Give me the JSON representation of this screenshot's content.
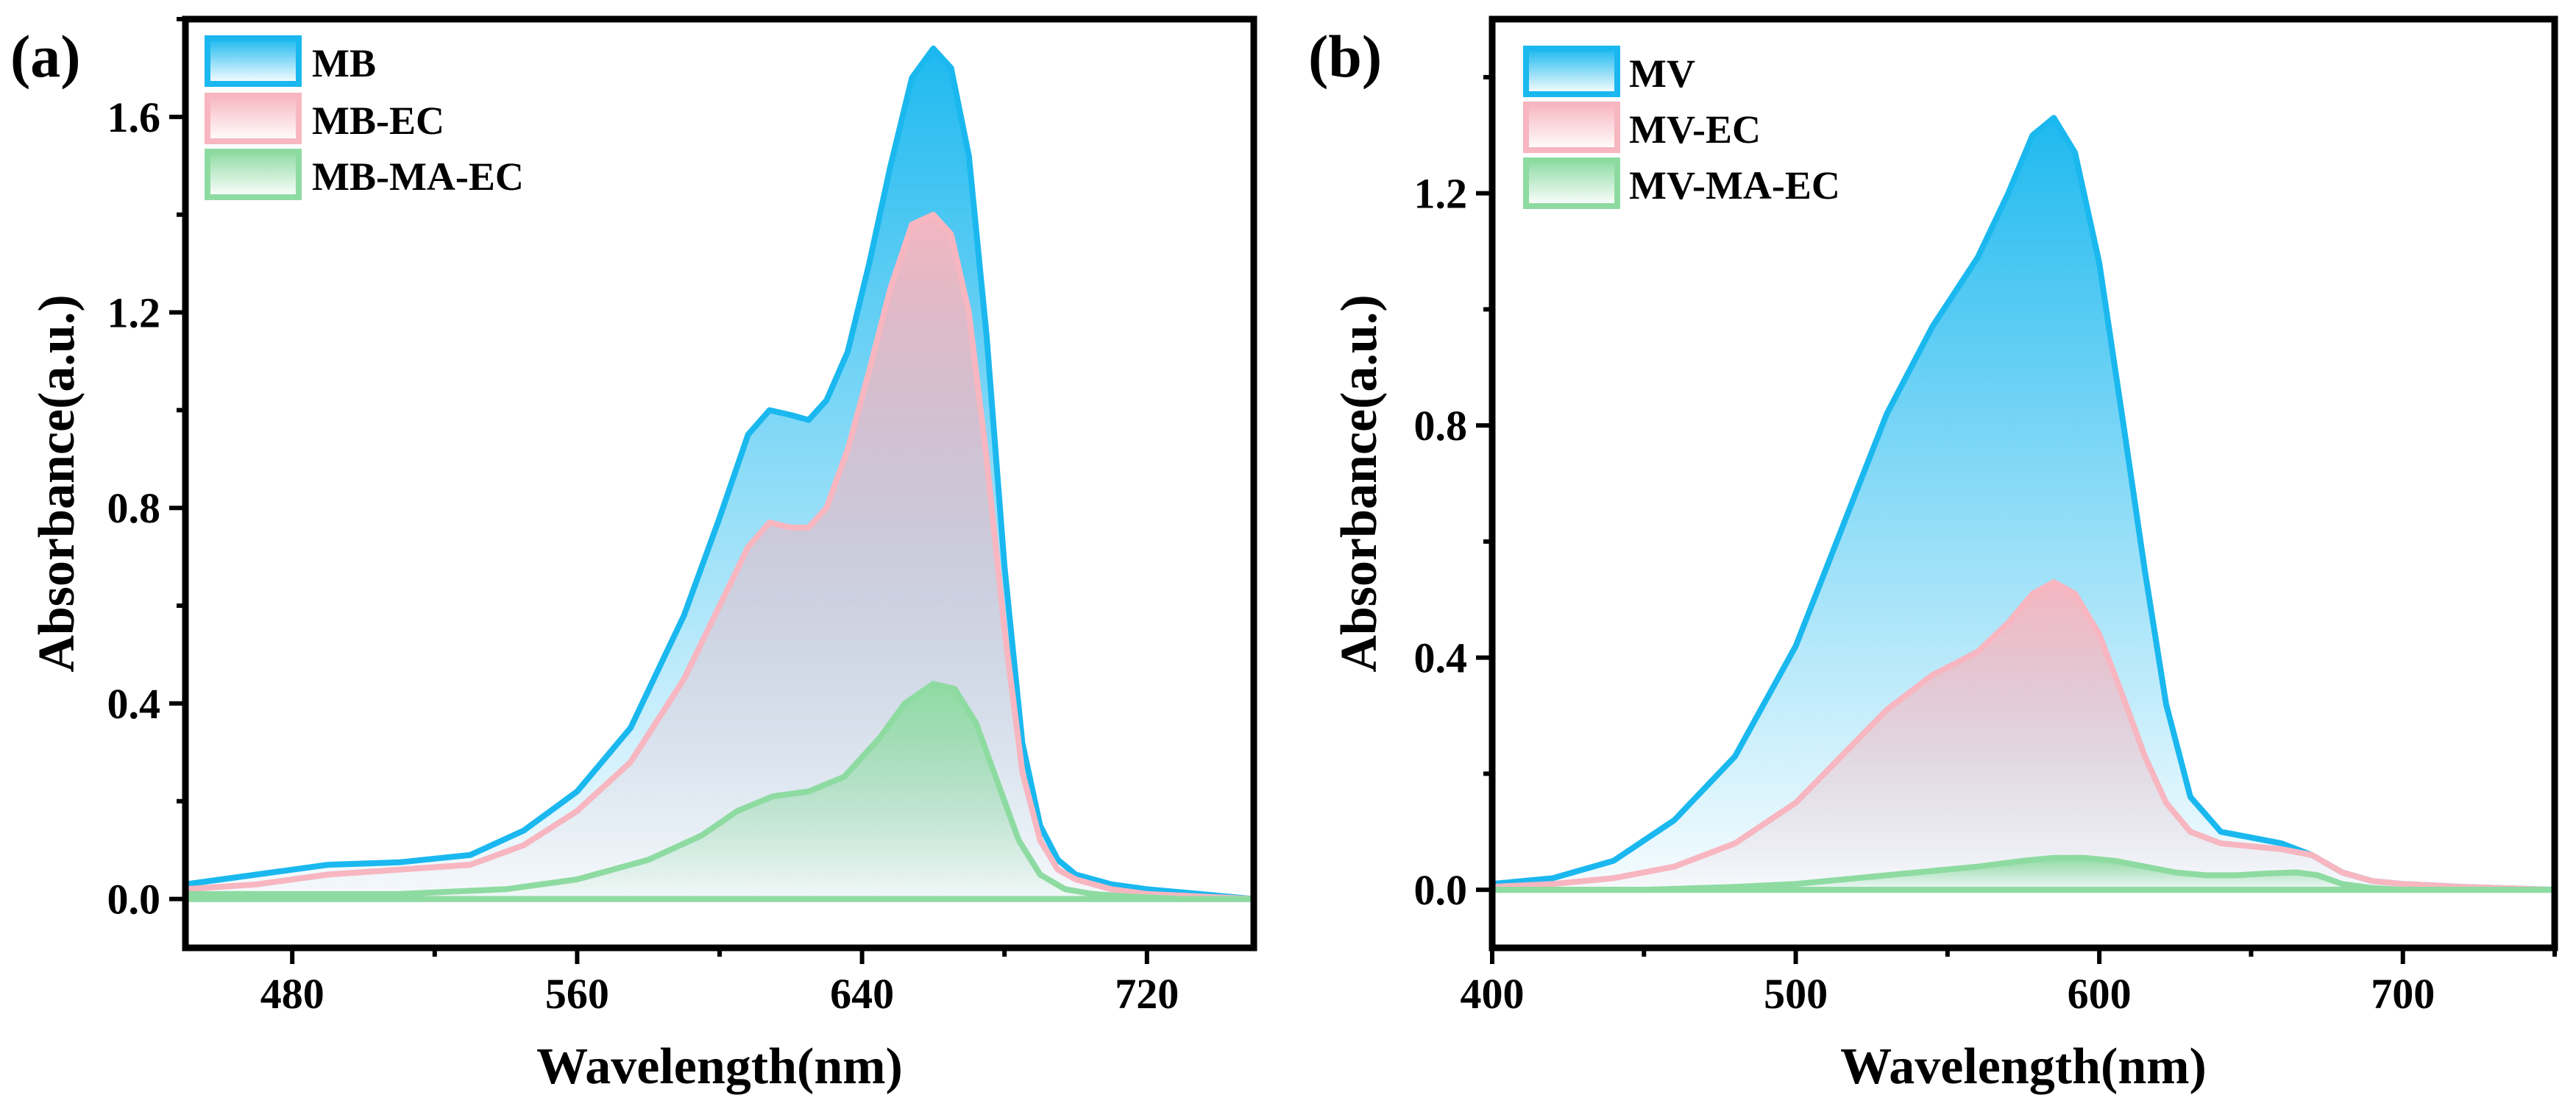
{
  "chart_data": [
    {
      "type": "area",
      "panel_label": "(a)",
      "xlabel": "Wavelength(nm)",
      "ylabel": "Absorbance(a.u.)",
      "xlim": [
        450,
        750
      ],
      "ylim": [
        -0.1,
        1.8
      ],
      "xticks": [
        480,
        560,
        640,
        720
      ],
      "yticks": [
        0.0,
        0.4,
        0.8,
        1.2,
        1.6
      ],
      "xtick_labels": [
        "480",
        "560",
        "640",
        "720"
      ],
      "ytick_labels": [
        "0.0",
        "0.4",
        "0.8",
        "1.2",
        "1.6"
      ],
      "legend_position": "top-left",
      "series": [
        {
          "name": "MB",
          "color": "#1ab8ef",
          "x": [
            450,
            470,
            490,
            510,
            530,
            545,
            560,
            575,
            590,
            600,
            608,
            614,
            620,
            625,
            630,
            636,
            642,
            648,
            654,
            660,
            665,
            670,
            675,
            680,
            685,
            690,
            695,
            700,
            710,
            720,
            735,
            750
          ],
          "y": [
            0.03,
            0.05,
            0.07,
            0.075,
            0.09,
            0.14,
            0.22,
            0.35,
            0.58,
            0.78,
            0.95,
            1.0,
            0.99,
            0.98,
            1.02,
            1.12,
            1.3,
            1.5,
            1.68,
            1.74,
            1.7,
            1.52,
            1.15,
            0.68,
            0.32,
            0.15,
            0.08,
            0.05,
            0.03,
            0.02,
            0.01,
            0.0
          ]
        },
        {
          "name": "MB-EC",
          "color": "#f7b6c0",
          "x": [
            450,
            470,
            490,
            510,
            530,
            545,
            560,
            575,
            590,
            600,
            608,
            614,
            620,
            625,
            630,
            636,
            642,
            648,
            654,
            660,
            665,
            670,
            675,
            680,
            685,
            690,
            695,
            700,
            710,
            720,
            735,
            750
          ],
          "y": [
            0.02,
            0.03,
            0.05,
            0.06,
            0.07,
            0.11,
            0.18,
            0.28,
            0.45,
            0.6,
            0.72,
            0.77,
            0.76,
            0.76,
            0.8,
            0.92,
            1.08,
            1.25,
            1.38,
            1.4,
            1.36,
            1.2,
            0.9,
            0.55,
            0.26,
            0.12,
            0.06,
            0.04,
            0.02,
            0.01,
            0.005,
            0.0
          ]
        },
        {
          "name": "MB-MA-EC",
          "color": "#8edba2",
          "x": [
            450,
            480,
            510,
            540,
            560,
            580,
            595,
            605,
            615,
            625,
            635,
            645,
            652,
            660,
            666,
            672,
            678,
            684,
            690,
            697,
            705,
            715,
            730,
            750
          ],
          "y": [
            0.01,
            0.01,
            0.01,
            0.02,
            0.04,
            0.08,
            0.13,
            0.18,
            0.21,
            0.22,
            0.25,
            0.33,
            0.4,
            0.44,
            0.43,
            0.36,
            0.24,
            0.12,
            0.05,
            0.02,
            0.01,
            0.005,
            0.0,
            0.0
          ]
        }
      ]
    },
    {
      "type": "area",
      "panel_label": "(b)",
      "xlabel": "Wavelength(nm)",
      "ylabel": "Absorbance(a.u.)",
      "xlim": [
        400,
        750
      ],
      "ylim": [
        -0.1,
        1.5
      ],
      "xticks": [
        400,
        500,
        600,
        700
      ],
      "yticks": [
        0.0,
        0.4,
        0.8,
        1.2
      ],
      "xtick_labels": [
        "400",
        "500",
        "600",
        "700"
      ],
      "ytick_labels": [
        "0.0",
        "0.4",
        "0.8",
        "1.2"
      ],
      "legend_position": "top-left",
      "series": [
        {
          "name": "MV",
          "color": "#1ab8ef",
          "x": [
            400,
            420,
            440,
            460,
            480,
            500,
            515,
            530,
            545,
            560,
            570,
            578,
            585,
            592,
            600,
            608,
            615,
            622,
            630,
            640,
            650,
            660,
            670,
            680,
            690,
            700,
            720,
            750
          ],
          "y": [
            0.01,
            0.02,
            0.05,
            0.12,
            0.23,
            0.42,
            0.62,
            0.82,
            0.97,
            1.09,
            1.2,
            1.3,
            1.33,
            1.27,
            1.08,
            0.8,
            0.55,
            0.32,
            0.16,
            0.1,
            0.09,
            0.08,
            0.06,
            0.03,
            0.015,
            0.01,
            0.005,
            0.0
          ]
        },
        {
          "name": "MV-EC",
          "color": "#f7b6c0",
          "x": [
            400,
            420,
            440,
            460,
            480,
            500,
            515,
            530,
            545,
            560,
            570,
            578,
            585,
            592,
            600,
            608,
            615,
            622,
            630,
            640,
            650,
            660,
            670,
            680,
            690,
            700,
            720,
            750
          ],
          "y": [
            0.005,
            0.01,
            0.02,
            0.04,
            0.08,
            0.15,
            0.23,
            0.31,
            0.37,
            0.41,
            0.46,
            0.51,
            0.53,
            0.51,
            0.44,
            0.33,
            0.23,
            0.15,
            0.1,
            0.08,
            0.075,
            0.07,
            0.06,
            0.03,
            0.015,
            0.01,
            0.005,
            0.0
          ]
        },
        {
          "name": "MV-MA-EC",
          "color": "#8edba2",
          "x": [
            400,
            450,
            480,
            500,
            520,
            540,
            560,
            575,
            585,
            595,
            605,
            615,
            625,
            635,
            645,
            655,
            665,
            672,
            680,
            690,
            700,
            720,
            750
          ],
          "y": [
            0.0,
            0.0,
            0.005,
            0.01,
            0.02,
            0.03,
            0.04,
            0.05,
            0.055,
            0.055,
            0.05,
            0.04,
            0.03,
            0.025,
            0.025,
            0.028,
            0.03,
            0.025,
            0.01,
            0.003,
            0.0,
            0.0,
            0.0
          ]
        }
      ]
    }
  ]
}
